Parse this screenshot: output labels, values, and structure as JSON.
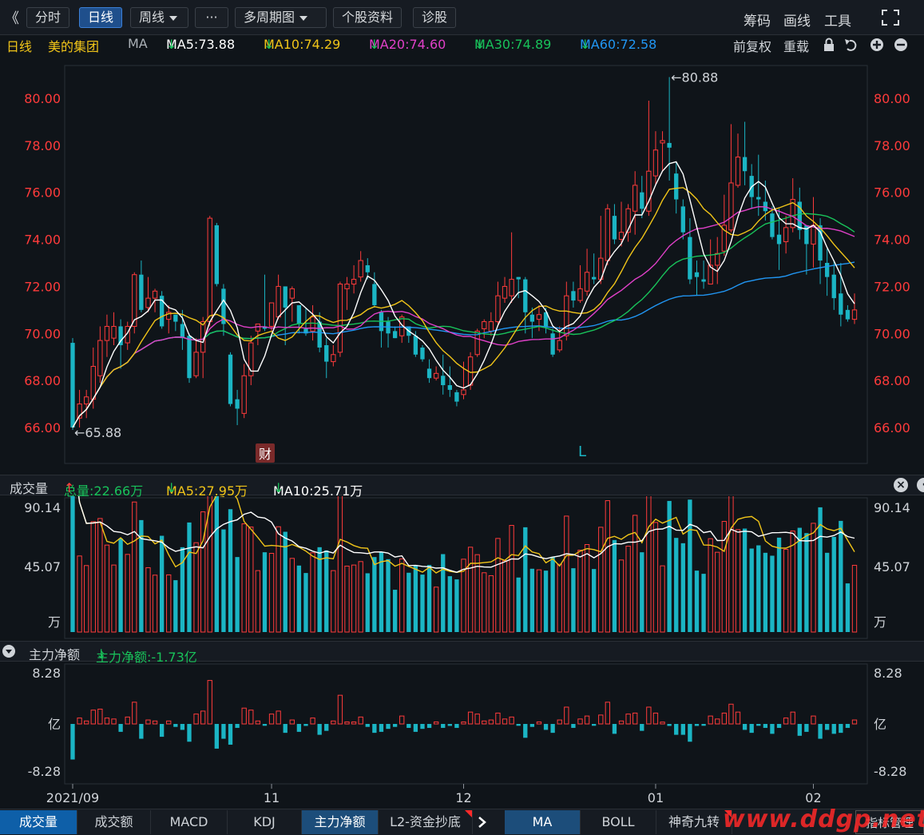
{
  "toolbar": {
    "back": "《",
    "btn_fenshi": "分时",
    "btn_rixian": "日线",
    "btn_zhouxian": "周线",
    "btn_more": "···",
    "btn_duozhouqi": "多周期图",
    "btn_gegu": "个股资料",
    "btn_zhengu": "诊股",
    "chouma": "筹码",
    "huaxian": "画线",
    "gongju": "工具",
    "expand_icon": "expand-icon"
  },
  "info": {
    "period": "日线",
    "name": "美的集团",
    "ma_label": "MA",
    "ma5": "MA5:73.88",
    "ma10": "MA10:74.29",
    "ma20": "MA20:74.60",
    "ma30": "MA30:74.89",
    "ma60": "MA60:72.58",
    "qianfuquan": "前复权",
    "zhongzai": "重载",
    "arrow": "↓"
  },
  "colors": {
    "ma5": "#ffffff",
    "ma10": "#f0c419",
    "ma20": "#e040c8",
    "ma30": "#18c25a",
    "ma60": "#2196f3",
    "up": "#ff3b3b",
    "down": "#1bb5c4",
    "axis_price": "#ff3b3b"
  },
  "price_axis": [
    "80.00",
    "78.00",
    "76.00",
    "74.00",
    "72.00",
    "70.00",
    "68.00",
    "66.00"
  ],
  "price_marks": {
    "high": "←80.88",
    "low": "←65.88",
    "cai": "财",
    "l_mark": "L"
  },
  "volume": {
    "title": "成交量",
    "total": "总量:22.66万",
    "ma5": "MA5:27.95万",
    "ma10": "MA10:25.71万",
    "up_arrow": "↑",
    "down_arrow": "↓",
    "axis": [
      "90.14",
      "45.07",
      "万"
    ]
  },
  "mainforce": {
    "title": "主力净额",
    "value": "主力净额:-1.73亿",
    "arrow": "↓",
    "axis": [
      "8.28",
      "亿",
      "-8.28"
    ]
  },
  "x_axis": [
    "2021/09",
    "11",
    "12",
    "01",
    "02"
  ],
  "tabs_left": [
    "成交量",
    "成交额",
    "MACD",
    "KDJ",
    "主力净额",
    "L2-资金抄底"
  ],
  "tabs_right": [
    "MA",
    "BOLL",
    "神奇九转"
  ],
  "tab_zhibiao": "指标管理",
  "watermark": "www.ddgp.net",
  "chart_data": {
    "type": "candlestick",
    "ylim": [
      65.0,
      81.5
    ],
    "candles": [
      [
        69.6,
        66.0,
        69.8,
        65.9
      ],
      [
        66.4,
        67.0,
        67.6,
        66.0
      ],
      [
        67.0,
        67.3,
        67.6,
        66.4
      ],
      [
        67.2,
        68.6,
        69.4,
        66.8
      ],
      [
        68.2,
        69.7,
        70.3,
        67.9
      ],
      [
        69.7,
        70.3,
        70.8,
        69.0
      ],
      [
        69.8,
        70.3,
        70.9,
        69.5
      ],
      [
        70.3,
        69.5,
        70.6,
        68.5
      ],
      [
        69.6,
        70.3,
        70.5,
        69.3
      ],
      [
        70.3,
        72.5,
        72.6,
        70.0
      ],
      [
        72.5,
        71.0,
        73.1,
        70.9
      ],
      [
        71.1,
        71.5,
        72.4,
        70.9
      ],
      [
        71.5,
        71.8,
        71.9,
        70.9
      ],
      [
        71.6,
        70.3,
        71.8,
        70.2
      ],
      [
        70.6,
        70.9,
        71.2,
        70.0
      ],
      [
        70.8,
        70.5,
        70.8,
        70.1
      ],
      [
        70.4,
        69.8,
        71.0,
        69.3
      ],
      [
        69.9,
        68.1,
        70.0,
        67.9
      ],
      [
        68.2,
        69.2,
        69.8,
        68.1
      ],
      [
        69.2,
        70.5,
        70.7,
        68.1
      ],
      [
        70.5,
        74.9,
        75.0,
        70.3
      ],
      [
        74.6,
        72.1,
        74.7,
        72.0
      ],
      [
        71.9,
        70.4,
        72.1,
        69.9
      ],
      [
        69.1,
        67.0,
        69.2,
        66.9
      ],
      [
        67.2,
        66.8,
        67.6,
        66.1
      ],
      [
        66.6,
        68.2,
        68.7,
        66.4
      ],
      [
        68.2,
        69.6,
        69.9,
        67.8
      ],
      [
        70.1,
        70.4,
        70.4,
        69.5
      ],
      [
        70.3,
        70.2,
        72.5,
        70.1
      ],
      [
        70.3,
        71.3,
        71.3,
        70.1
      ],
      [
        70.7,
        72.0,
        72.5,
        70.6
      ],
      [
        72.0,
        71.1,
        72.0,
        69.5
      ],
      [
        71.5,
        71.9,
        72.0,
        70.5
      ],
      [
        71.2,
        70.4,
        71.2,
        70.0
      ],
      [
        70.2,
        70.0,
        71.1,
        69.9
      ],
      [
        70.1,
        70.7,
        71.2,
        69.7
      ],
      [
        70.5,
        69.4,
        70.9,
        69.2
      ],
      [
        69.5,
        68.8,
        69.8,
        68.1
      ],
      [
        68.8,
        69.1,
        69.5,
        68.6
      ],
      [
        69.2,
        72.1,
        72.2,
        69.0
      ],
      [
        71.9,
        72.1,
        72.4,
        71.0
      ],
      [
        72.1,
        72.3,
        72.9,
        71.7
      ],
      [
        72.4,
        73.1,
        73.5,
        72.2
      ],
      [
        72.9,
        72.6,
        73.2,
        72.3
      ],
      [
        72.1,
        71.2,
        72.6,
        71.1
      ],
      [
        70.9,
        70.1,
        71.0,
        69.4
      ],
      [
        70.5,
        70.0,
        70.7,
        69.4
      ],
      [
        70.1,
        69.8,
        70.3,
        69.8
      ],
      [
        69.9,
        70.7,
        70.8,
        69.6
      ],
      [
        70.3,
        69.9,
        70.3,
        69.6
      ],
      [
        69.9,
        69.1,
        70.1,
        69.0
      ],
      [
        69.4,
        68.9,
        69.5,
        68.8
      ],
      [
        68.5,
        68.1,
        68.9,
        67.9
      ],
      [
        68.1,
        68.3,
        68.6,
        68.0
      ],
      [
        68.2,
        67.8,
        69.1,
        67.4
      ],
      [
        67.8,
        67.6,
        68.6,
        67.3
      ],
      [
        67.5,
        67.1,
        67.6,
        66.9
      ],
      [
        67.4,
        67.6,
        68.8,
        67.2
      ],
      [
        67.8,
        69.0,
        69.2,
        67.6
      ],
      [
        69.1,
        70.1,
        70.2,
        69.0
      ],
      [
        70.2,
        70.5,
        70.6,
        69.8
      ],
      [
        70.1,
        70.5,
        70.9,
        69.9
      ],
      [
        70.5,
        71.6,
        72.2,
        70.4
      ],
      [
        71.5,
        72.0,
        72.4,
        71.3
      ],
      [
        71.6,
        72.3,
        74.3,
        71.3
      ],
      [
        72.4,
        72.3,
        72.4,
        71.5
      ],
      [
        72.3,
        70.9,
        72.4,
        70.0
      ],
      [
        70.8,
        70.5,
        71.1,
        69.8
      ],
      [
        70.6,
        70.8,
        71.2,
        70.1
      ],
      [
        70.9,
        70.3,
        71.1,
        70.0
      ],
      [
        70.0,
        69.1,
        70.2,
        69.0
      ],
      [
        69.3,
        69.7,
        70.3,
        69.2
      ],
      [
        69.9,
        71.6,
        72.2,
        69.7
      ],
      [
        71.8,
        71.4,
        72.2,
        71.1
      ],
      [
        71.4,
        71.9,
        72.9,
        71.3
      ],
      [
        71.8,
        72.6,
        73.6,
        71.6
      ],
      [
        72.4,
        72.3,
        73.4,
        72.1
      ],
      [
        72.3,
        73.2,
        75.0,
        72.1
      ],
      [
        73.1,
        75.3,
        75.5,
        72.9
      ],
      [
        75.0,
        74.0,
        75.5,
        73.8
      ],
      [
        74.0,
        74.3,
        75.6,
        73.7
      ],
      [
        74.3,
        75.3,
        75.5,
        73.9
      ],
      [
        75.2,
        76.3,
        76.9,
        74.2
      ],
      [
        76.0,
        75.3,
        76.7,
        74.9
      ],
      [
        75.2,
        76.9,
        79.9,
        75.0
      ],
      [
        76.7,
        77.8,
        78.6,
        76.3
      ],
      [
        78.1,
        78.2,
        78.6,
        76.9
      ],
      [
        78.1,
        77.9,
        80.9,
        76.5
      ],
      [
        76.8,
        75.7,
        77.3,
        75.1
      ],
      [
        75.4,
        74.3,
        75.7,
        74.0
      ],
      [
        74.1,
        72.3,
        74.9,
        72.1
      ],
      [
        72.6,
        72.4,
        73.1,
        71.6
      ],
      [
        72.3,
        72.2,
        73.1,
        71.9
      ],
      [
        72.1,
        72.9,
        74.0,
        72.1
      ],
      [
        72.9,
        73.4,
        74.1,
        72.1
      ],
      [
        73.5,
        74.6,
        75.9,
        73.3
      ],
      [
        74.4,
        76.4,
        78.9,
        74.3
      ],
      [
        76.3,
        77.5,
        78.5,
        76.2
      ],
      [
        77.5,
        76.9,
        79.0,
        76.3
      ],
      [
        76.7,
        75.8,
        77.2,
        75.3
      ],
      [
        75.8,
        75.7,
        77.6,
        75.0
      ],
      [
        75.6,
        75.2,
        76.5,
        74.8
      ],
      [
        75.1,
        74.1,
        75.4,
        74.0
      ],
      [
        74.2,
        73.8,
        75.3,
        72.7
      ],
      [
        73.9,
        74.5,
        75.0,
        73.4
      ],
      [
        74.5,
        75.7,
        76.6,
        74.3
      ],
      [
        75.6,
        74.4,
        76.2,
        74.0
      ],
      [
        74.6,
        73.8,
        74.6,
        72.5
      ],
      [
        73.8,
        74.6,
        75.8,
        72.8
      ],
      [
        74.6,
        73.1,
        74.9,
        72.1
      ],
      [
        73.0,
        72.4,
        73.6,
        71.6
      ],
      [
        72.5,
        71.5,
        73.1,
        71.0
      ],
      [
        71.7,
        70.8,
        73.0,
        70.3
      ],
      [
        71.0,
        70.6,
        71.2,
        70.5
      ],
      [
        70.6,
        71.0,
        71.7,
        70.4
      ]
    ]
  }
}
